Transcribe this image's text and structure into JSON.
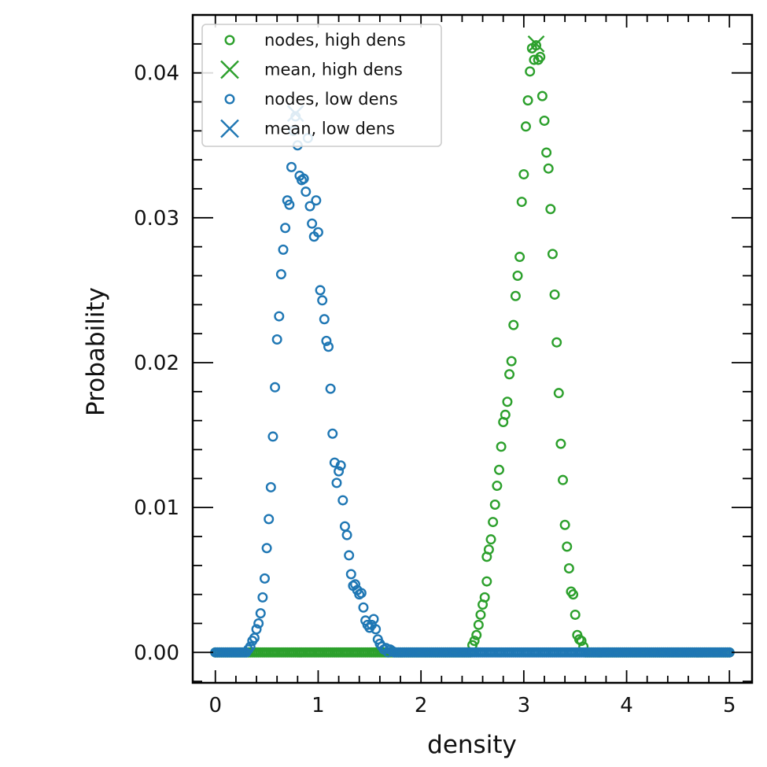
{
  "chart_data": {
    "type": "scatter",
    "xlabel": "density",
    "ylabel": "Probability",
    "xlim": [
      -0.22,
      5.22
    ],
    "ylim": [
      -0.0021,
      0.044
    ],
    "xticks": [
      0,
      1,
      2,
      3,
      4,
      5
    ],
    "xtick_labels": [
      "0",
      "1",
      "2",
      "3",
      "4",
      "5"
    ],
    "yticks": [
      0.0,
      0.01,
      0.02,
      0.03,
      0.04
    ],
    "ytick_labels": [
      "0.00",
      "0.01",
      "0.02",
      "0.03",
      "0.04"
    ],
    "grid": false,
    "legend_position": "top-left",
    "legend": [
      {
        "label": "nodes, high dens",
        "marker": "circle",
        "color": "#2ca02c"
      },
      {
        "label": "mean, high dens",
        "marker": "x",
        "color": "#2ca02c"
      },
      {
        "label": "nodes, low dens",
        "marker": "circle",
        "color": "#1f77b4"
      },
      {
        "label": "mean, low dens",
        "marker": "x",
        "color": "#1f77b4"
      }
    ],
    "series": [
      {
        "marker": "circle",
        "color": "#2ca02c",
        "x_range": [
          0,
          5
        ],
        "x_step": 0.02,
        "peaks": [
          {
            "x": 2.5,
            "y": 0.0005
          },
          {
            "x": 2.52,
            "y": 0.0008
          },
          {
            "x": 2.54,
            "y": 0.0012
          },
          {
            "x": 2.56,
            "y": 0.0019
          },
          {
            "x": 2.58,
            "y": 0.0026
          },
          {
            "x": 2.6,
            "y": 0.0033
          },
          {
            "x": 2.62,
            "y": 0.0038
          },
          {
            "x": 2.64,
            "y": 0.0049
          },
          {
            "x": 2.64,
            "y": 0.0066
          },
          {
            "x": 2.66,
            "y": 0.0071
          },
          {
            "x": 2.68,
            "y": 0.0078
          },
          {
            "x": 2.7,
            "y": 0.009
          },
          {
            "x": 2.72,
            "y": 0.0102
          },
          {
            "x": 2.74,
            "y": 0.0115
          },
          {
            "x": 2.76,
            "y": 0.0126
          },
          {
            "x": 2.78,
            "y": 0.0142
          },
          {
            "x": 2.8,
            "y": 0.0159
          },
          {
            "x": 2.82,
            "y": 0.0164
          },
          {
            "x": 2.84,
            "y": 0.0173
          },
          {
            "x": 2.86,
            "y": 0.0192
          },
          {
            "x": 2.88,
            "y": 0.0201
          },
          {
            "x": 2.9,
            "y": 0.0226
          },
          {
            "x": 2.92,
            "y": 0.0246
          },
          {
            "x": 2.94,
            "y": 0.026
          },
          {
            "x": 2.96,
            "y": 0.0273
          },
          {
            "x": 2.98,
            "y": 0.0311
          },
          {
            "x": 3.0,
            "y": 0.033
          },
          {
            "x": 3.02,
            "y": 0.0363
          },
          {
            "x": 3.04,
            "y": 0.0381
          },
          {
            "x": 3.06,
            "y": 0.0401
          },
          {
            "x": 3.08,
            "y": 0.0417
          },
          {
            "x": 3.1,
            "y": 0.0409
          },
          {
            "x": 3.12,
            "y": 0.0419
          },
          {
            "x": 3.14,
            "y": 0.0409
          },
          {
            "x": 3.16,
            "y": 0.0411
          },
          {
            "x": 3.18,
            "y": 0.0384
          },
          {
            "x": 3.2,
            "y": 0.0367
          },
          {
            "x": 3.22,
            "y": 0.0345
          },
          {
            "x": 3.24,
            "y": 0.0334
          },
          {
            "x": 3.26,
            "y": 0.0306
          },
          {
            "x": 3.28,
            "y": 0.0275
          },
          {
            "x": 3.3,
            "y": 0.0247
          },
          {
            "x": 3.32,
            "y": 0.0214
          },
          {
            "x": 3.34,
            "y": 0.0179
          },
          {
            "x": 3.36,
            "y": 0.0144
          },
          {
            "x": 3.38,
            "y": 0.0119
          },
          {
            "x": 3.4,
            "y": 0.0088
          },
          {
            "x": 3.42,
            "y": 0.0073
          },
          {
            "x": 3.44,
            "y": 0.0058
          },
          {
            "x": 3.46,
            "y": 0.0042
          },
          {
            "x": 3.48,
            "y": 0.004
          },
          {
            "x": 3.5,
            "y": 0.0026
          },
          {
            "x": 3.52,
            "y": 0.0012
          },
          {
            "x": 3.54,
            "y": 0.0009
          },
          {
            "x": 3.56,
            "y": 0.0008
          },
          {
            "x": 3.58,
            "y": 0.0004
          }
        ]
      },
      {
        "marker": "circle",
        "color": "#1f77b4",
        "x_range": [
          0,
          5
        ],
        "x_step": 0.02,
        "peaks": [
          {
            "x": 0.32,
            "y": 0.0002
          },
          {
            "x": 0.34,
            "y": 0.0004
          },
          {
            "x": 0.36,
            "y": 0.0008
          },
          {
            "x": 0.38,
            "y": 0.001
          },
          {
            "x": 0.4,
            "y": 0.0016
          },
          {
            "x": 0.42,
            "y": 0.002
          },
          {
            "x": 0.44,
            "y": 0.0027
          },
          {
            "x": 0.46,
            "y": 0.0038
          },
          {
            "x": 0.48,
            "y": 0.0051
          },
          {
            "x": 0.5,
            "y": 0.0072
          },
          {
            "x": 0.52,
            "y": 0.0092
          },
          {
            "x": 0.54,
            "y": 0.0114
          },
          {
            "x": 0.56,
            "y": 0.0149
          },
          {
            "x": 0.58,
            "y": 0.0183
          },
          {
            "x": 0.6,
            "y": 0.0216
          },
          {
            "x": 0.62,
            "y": 0.0232
          },
          {
            "x": 0.64,
            "y": 0.0261
          },
          {
            "x": 0.66,
            "y": 0.0278
          },
          {
            "x": 0.68,
            "y": 0.0293
          },
          {
            "x": 0.7,
            "y": 0.0312
          },
          {
            "x": 0.72,
            "y": 0.0309
          },
          {
            "x": 0.74,
            "y": 0.0335
          },
          {
            "x": 0.76,
            "y": 0.036
          },
          {
            "x": 0.78,
            "y": 0.037
          },
          {
            "x": 0.8,
            "y": 0.035
          },
          {
            "x": 0.82,
            "y": 0.0329
          },
          {
            "x": 0.84,
            "y": 0.0326
          },
          {
            "x": 0.86,
            "y": 0.0327
          },
          {
            "x": 0.88,
            "y": 0.0318
          },
          {
            "x": 0.9,
            "y": 0.0355
          },
          {
            "x": 0.92,
            "y": 0.0308
          },
          {
            "x": 0.94,
            "y": 0.0296
          },
          {
            "x": 0.96,
            "y": 0.0287
          },
          {
            "x": 0.98,
            "y": 0.0312
          },
          {
            "x": 1.0,
            "y": 0.029
          },
          {
            "x": 1.02,
            "y": 0.025
          },
          {
            "x": 1.04,
            "y": 0.0243
          },
          {
            "x": 1.06,
            "y": 0.023
          },
          {
            "x": 1.08,
            "y": 0.0215
          },
          {
            "x": 1.1,
            "y": 0.0211
          },
          {
            "x": 1.12,
            "y": 0.0182
          },
          {
            "x": 1.14,
            "y": 0.0151
          },
          {
            "x": 1.16,
            "y": 0.0131
          },
          {
            "x": 1.18,
            "y": 0.0117
          },
          {
            "x": 1.2,
            "y": 0.0125
          },
          {
            "x": 1.22,
            "y": 0.0129
          },
          {
            "x": 1.24,
            "y": 0.0105
          },
          {
            "x": 1.26,
            "y": 0.0087
          },
          {
            "x": 1.28,
            "y": 0.0081
          },
          {
            "x": 1.3,
            "y": 0.0067
          },
          {
            "x": 1.32,
            "y": 0.0054
          },
          {
            "x": 1.34,
            "y": 0.0046
          },
          {
            "x": 1.36,
            "y": 0.0047
          },
          {
            "x": 1.38,
            "y": 0.0043
          },
          {
            "x": 1.4,
            "y": 0.004
          },
          {
            "x": 1.42,
            "y": 0.0041
          },
          {
            "x": 1.44,
            "y": 0.0031
          },
          {
            "x": 1.46,
            "y": 0.0022
          },
          {
            "x": 1.48,
            "y": 0.0019
          },
          {
            "x": 1.5,
            "y": 0.0017
          },
          {
            "x": 1.52,
            "y": 0.0019
          },
          {
            "x": 1.54,
            "y": 0.0023
          },
          {
            "x": 1.56,
            "y": 0.0016
          },
          {
            "x": 1.58,
            "y": 0.0009
          },
          {
            "x": 1.6,
            "y": 0.0006
          },
          {
            "x": 1.62,
            "y": 0.0004
          },
          {
            "x": 1.64,
            "y": 0.0002
          },
          {
            "x": 1.66,
            "y": 0.0003
          },
          {
            "x": 1.7,
            "y": 0.0002
          },
          {
            "x": 1.72,
            "y": 0.0001
          }
        ]
      }
    ],
    "means": [
      {
        "color": "#2ca02c",
        "x": 3.12,
        "y": 0.042
      },
      {
        "color": "#1f77b4",
        "x": 0.78,
        "y": 0.0372
      }
    ]
  }
}
